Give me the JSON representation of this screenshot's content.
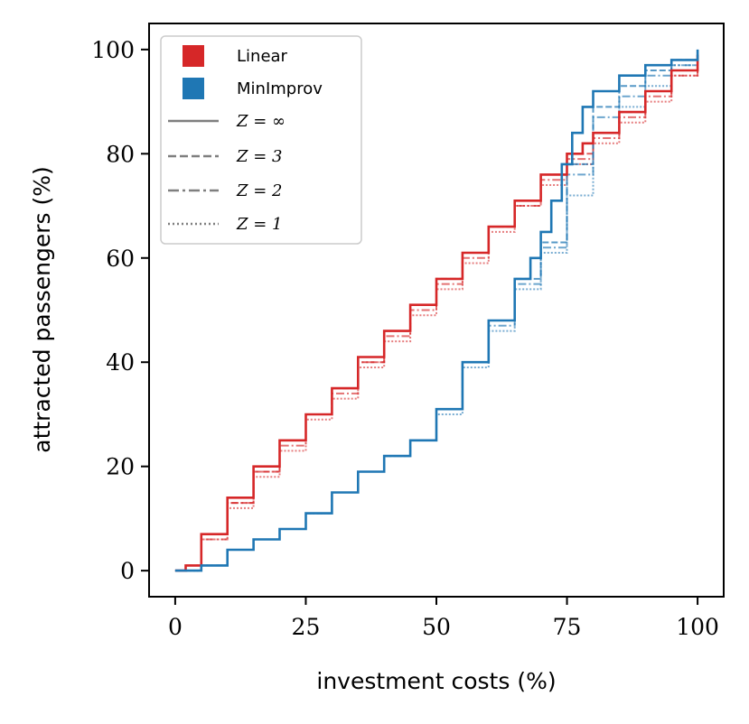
{
  "chart_data": {
    "type": "line",
    "title": "",
    "xlabel": "investment costs (%)",
    "ylabel": "attracted passengers (%)",
    "xlim": [
      -5,
      105
    ],
    "ylim": [
      -5,
      105
    ],
    "xticks": [
      0,
      25,
      50,
      75,
      100
    ],
    "yticks": [
      0,
      20,
      40,
      60,
      80,
      100
    ],
    "xtick_labels": [
      "0",
      "25",
      "50",
      "75",
      "100"
    ],
    "ytick_labels": [
      "0",
      "20",
      "40",
      "60",
      "80",
      "100"
    ],
    "grid": false,
    "legend_position": "top-left",
    "colors": {
      "Linear": "#d62728",
      "MinImprov": "#1f77b4",
      "style": "#7f7f7f"
    },
    "legend": {
      "methods": [
        "Linear",
        "MinImprov"
      ],
      "styles": [
        "Z = ∞",
        "Z = 3",
        "Z = 2",
        "Z = 1"
      ]
    },
    "series": [
      {
        "name": "Linear",
        "Z": "∞",
        "linestyle": "solid",
        "x": [
          0,
          2,
          5,
          10,
          15,
          20,
          25,
          30,
          35,
          40,
          45,
          50,
          55,
          60,
          65,
          70,
          75,
          78,
          80,
          85,
          90,
          95,
          100
        ],
        "y": [
          0,
          1,
          7,
          14,
          20,
          25,
          30,
          35,
          41,
          46,
          51,
          56,
          61,
          66,
          71,
          76,
          80,
          82,
          84,
          88,
          92,
          96,
          99
        ]
      },
      {
        "name": "Linear",
        "Z": "3",
        "linestyle": "dashed",
        "x": [
          2,
          5,
          10,
          15,
          20,
          25,
          30,
          35,
          40,
          45,
          50,
          55,
          60,
          65,
          70,
          75,
          80,
          85,
          90,
          95,
          100
        ],
        "y": [
          1,
          7,
          13,
          19,
          25,
          30,
          35,
          40,
          46,
          51,
          56,
          61,
          66,
          71,
          76,
          80,
          84,
          88,
          92,
          96,
          99
        ]
      },
      {
        "name": "Linear",
        "Z": "2",
        "linestyle": "dashdot",
        "x": [
          2,
          5,
          10,
          15,
          20,
          25,
          30,
          35,
          40,
          45,
          50,
          55,
          60,
          65,
          70,
          75,
          80,
          85,
          90,
          95,
          100
        ],
        "y": [
          1,
          6,
          13,
          19,
          24,
          30,
          34,
          40,
          45,
          50,
          55,
          60,
          66,
          70,
          75,
          79,
          83,
          87,
          91,
          95,
          99
        ]
      },
      {
        "name": "Linear",
        "Z": "1",
        "linestyle": "dotted",
        "x": [
          2,
          5,
          10,
          15,
          20,
          25,
          30,
          35,
          40,
          45,
          50,
          55,
          60,
          65,
          70,
          75,
          80,
          85,
          90,
          95,
          100
        ],
        "y": [
          1,
          6,
          12,
          18,
          23,
          29,
          33,
          39,
          44,
          49,
          54,
          59,
          65,
          70,
          74,
          78,
          82,
          86,
          90,
          95,
          99
        ]
      },
      {
        "name": "MinImprov",
        "Z": "∞",
        "linestyle": "solid",
        "x": [
          0,
          2,
          5,
          10,
          15,
          20,
          25,
          30,
          35,
          40,
          45,
          50,
          55,
          60,
          65,
          68,
          70,
          72,
          74,
          76,
          78,
          80,
          85,
          90,
          95,
          100
        ],
        "y": [
          0,
          0,
          1,
          4,
          6,
          8,
          11,
          15,
          19,
          22,
          25,
          31,
          40,
          48,
          56,
          60,
          65,
          71,
          78,
          84,
          89,
          92,
          95,
          97,
          98,
          100
        ]
      },
      {
        "name": "MinImprov",
        "Z": "3",
        "linestyle": "dashed",
        "x": [
          0,
          5,
          10,
          15,
          20,
          25,
          30,
          35,
          40,
          45,
          50,
          55,
          60,
          65,
          70,
          75,
          80,
          85,
          90,
          95,
          100
        ],
        "y": [
          0,
          1,
          4,
          6,
          8,
          11,
          15,
          19,
          22,
          25,
          31,
          40,
          48,
          56,
          63,
          78,
          89,
          93,
          96,
          98,
          99
        ]
      },
      {
        "name": "MinImprov",
        "Z": "2",
        "linestyle": "dashdot",
        "x": [
          0,
          5,
          10,
          15,
          20,
          25,
          30,
          35,
          40,
          45,
          50,
          55,
          60,
          65,
          70,
          75,
          80,
          85,
          90,
          95,
          100
        ],
        "y": [
          0,
          1,
          4,
          6,
          8,
          11,
          15,
          19,
          22,
          25,
          31,
          40,
          47,
          55,
          62,
          76,
          87,
          91,
          95,
          97,
          99
        ]
      },
      {
        "name": "MinImprov",
        "Z": "1",
        "linestyle": "dotted",
        "x": [
          0,
          5,
          10,
          15,
          20,
          25,
          30,
          35,
          40,
          45,
          50,
          55,
          60,
          65,
          70,
          75,
          80,
          85,
          90,
          95,
          100
        ],
        "y": [
          0,
          1,
          4,
          6,
          8,
          11,
          15,
          19,
          22,
          25,
          30,
          39,
          46,
          54,
          61,
          72,
          84,
          89,
          93,
          97,
          99
        ]
      }
    ]
  }
}
